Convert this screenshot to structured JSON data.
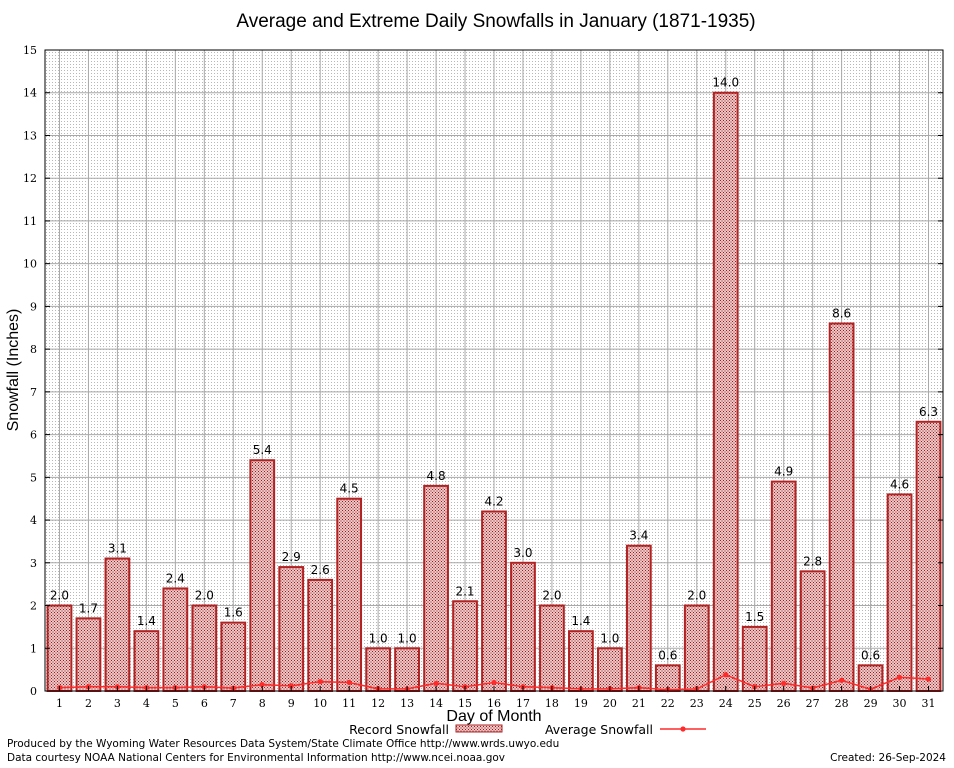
{
  "chart_data": {
    "type": "bar",
    "title": "Average and Extreme Daily Snowfalls in January (1871-1935)",
    "xlabel": "Day of Month",
    "ylabel": "Snowfall (Inches)",
    "ylim": [
      0,
      15
    ],
    "yticks": [
      0,
      1,
      2,
      3,
      4,
      5,
      6,
      7,
      8,
      9,
      10,
      11,
      12,
      13,
      14,
      15
    ],
    "categories": [
      "1",
      "2",
      "3",
      "4",
      "5",
      "6",
      "7",
      "8",
      "9",
      "10",
      "11",
      "12",
      "13",
      "14",
      "15",
      "16",
      "17",
      "18",
      "19",
      "20",
      "21",
      "22",
      "23",
      "24",
      "25",
      "26",
      "27",
      "28",
      "29",
      "30",
      "31"
    ],
    "grid": true,
    "series": [
      {
        "name": "Record Snowfall",
        "type": "bar",
        "color": "#b22222",
        "values": [
          2.0,
          1.7,
          3.1,
          1.4,
          2.4,
          2.0,
          1.6,
          5.4,
          2.9,
          2.6,
          4.5,
          1.0,
          1.0,
          4.8,
          2.1,
          4.2,
          3.0,
          2.0,
          1.4,
          1.0,
          3.4,
          0.6,
          2.0,
          14.0,
          1.5,
          4.9,
          2.8,
          8.6,
          0.6,
          4.6,
          6.3
        ],
        "labels": [
          "2.0",
          "1.7",
          "3.1",
          "1.4",
          "2.4",
          "2.0",
          "1.6",
          "5.4",
          "2.9",
          "2.6",
          "4.5",
          "1.0",
          "1.0",
          "4.8",
          "2.1",
          "4.2",
          "3.0",
          "2.0",
          "1.4",
          "1.0",
          "3.4",
          "0.6",
          "2.0",
          "14.0",
          "1.5",
          "4.9",
          "2.8",
          "8.6",
          "0.6",
          "4.6",
          "6.3"
        ]
      },
      {
        "name": "Average Snowfall",
        "type": "line",
        "color": "#ff2a2a",
        "values": [
          0.08,
          0.1,
          0.1,
          0.08,
          0.08,
          0.1,
          0.07,
          0.15,
          0.12,
          0.22,
          0.2,
          0.05,
          0.05,
          0.18,
          0.1,
          0.2,
          0.1,
          0.08,
          0.05,
          0.05,
          0.08,
          0.03,
          0.05,
          0.38,
          0.1,
          0.18,
          0.07,
          0.25,
          0.04,
          0.32,
          0.28
        ]
      }
    ],
    "legend": "bottom-center"
  },
  "footer": {
    "produced_by": "Produced by the Wyoming Water Resources Data System/State Climate Office http://www.wrds.uwyo.edu",
    "courtesy": "Data courtesy NOAA National Centers for Environmental Information http://www.ncei.noaa.gov",
    "created": "Created:  26-Sep-2024"
  }
}
